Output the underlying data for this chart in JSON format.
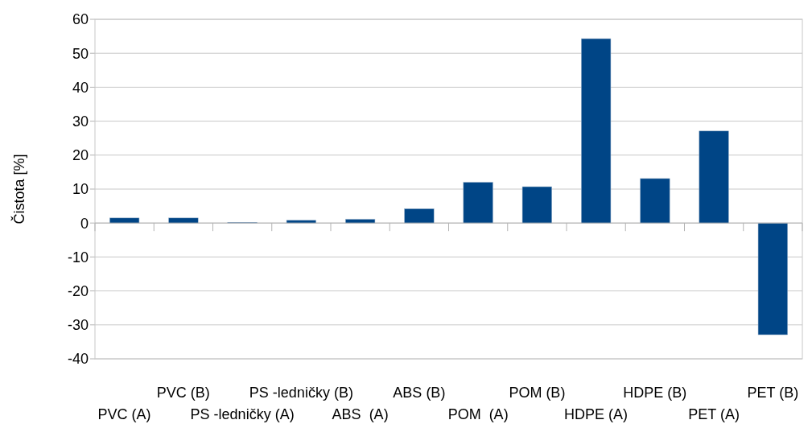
{
  "chart_data": {
    "type": "bar",
    "ylabel": "Čistota [%]",
    "categories": [
      "PVC (A)",
      "PVC (B)",
      "PS -ledničky (A)",
      "PS -ledničky (B)",
      "ABS  (A)",
      "ABS (B)",
      "POM  (A)",
      "POM (B)",
      "HDPE (A)",
      "HDPE (B)",
      "PET (A)",
      "PET (B)"
    ],
    "values": [
      1.5,
      1.5,
      0.2,
      0.8,
      1.1,
      4.2,
      12,
      10.7,
      54.3,
      13.1,
      27.1,
      -32.9
    ],
    "color": "#004586",
    "ylim": [
      -40,
      60
    ],
    "yticks": [
      -40,
      -30,
      -20,
      -10,
      0,
      10,
      20,
      30,
      40,
      50,
      60
    ],
    "grid": "y"
  }
}
